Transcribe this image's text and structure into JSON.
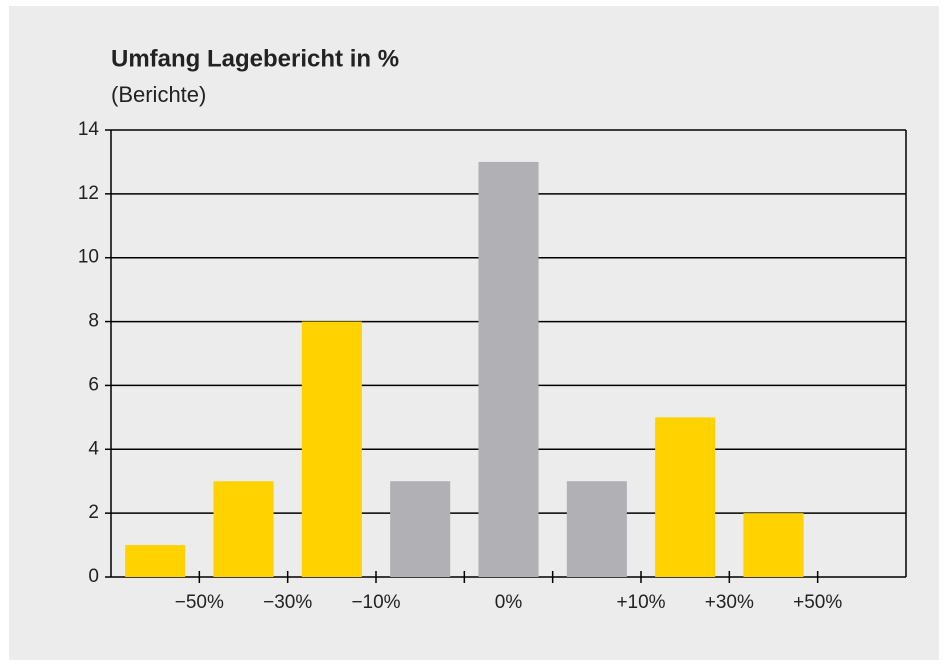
{
  "chart_data": {
    "type": "bar",
    "title": "Umfang Lagebericht in %",
    "subtitle": "(Berichte)",
    "categories": [
      null,
      null,
      null,
      null,
      null,
      null,
      null,
      null,
      null
    ],
    "values": [
      1,
      3,
      8,
      3,
      13,
      3,
      5,
      2,
      0
    ],
    "colors": [
      "#ffd200",
      "#ffd200",
      "#ffd200",
      "#b1b0b5",
      "#b1b0b5",
      "#b1b0b5",
      "#ffd200",
      "#ffd200",
      "#ffd200"
    ],
    "xtick_labels": [
      "−50%",
      "−30%",
      "−10%",
      "0%",
      "+10%",
      "+30%",
      "+50%"
    ],
    "ylim": [
      0,
      14
    ],
    "yticks": [
      0,
      2,
      4,
      6,
      8,
      10,
      12,
      14
    ],
    "grid": true
  }
}
